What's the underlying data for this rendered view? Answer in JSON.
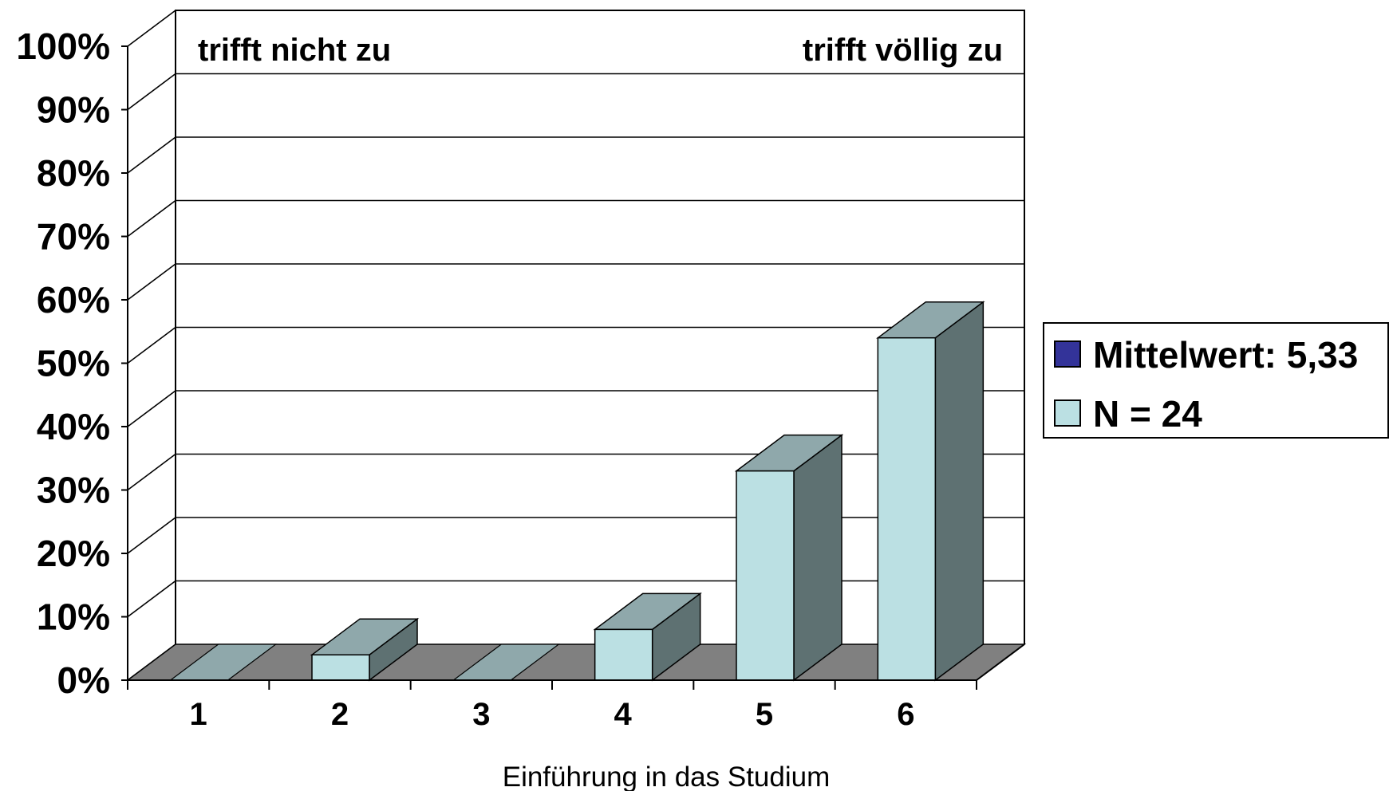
{
  "chart_data": {
    "type": "bar",
    "style": "3d",
    "categories": [
      "1",
      "2",
      "3",
      "4",
      "5",
      "6"
    ],
    "series": [
      {
        "values": [
          0,
          4,
          0,
          8,
          33,
          54
        ]
      }
    ],
    "ylim": [
      0,
      100
    ],
    "yticks": [
      "0%",
      "10%",
      "20%",
      "30%",
      "40%",
      "50%",
      "60%",
      "70%",
      "80%",
      "90%",
      "100%"
    ],
    "xlabel": "Einführung in das Studium",
    "ylabel": "",
    "annotations": {
      "left": "trifft nicht zu",
      "right": "trifft völlig zu"
    },
    "legend": {
      "placement": "right",
      "entries": [
        {
          "label": "Mittelwert: 5,33",
          "color": "#333399"
        },
        {
          "label": "N = 24",
          "color": "#bbe0e3"
        }
      ]
    },
    "grid": true,
    "colors": {
      "bar_front": "#bbe0e3",
      "bar_top": "#8fa8ab",
      "bar_side": "#5e7172",
      "floor": "#808080",
      "empty_slot": "#8fa8ab"
    }
  }
}
